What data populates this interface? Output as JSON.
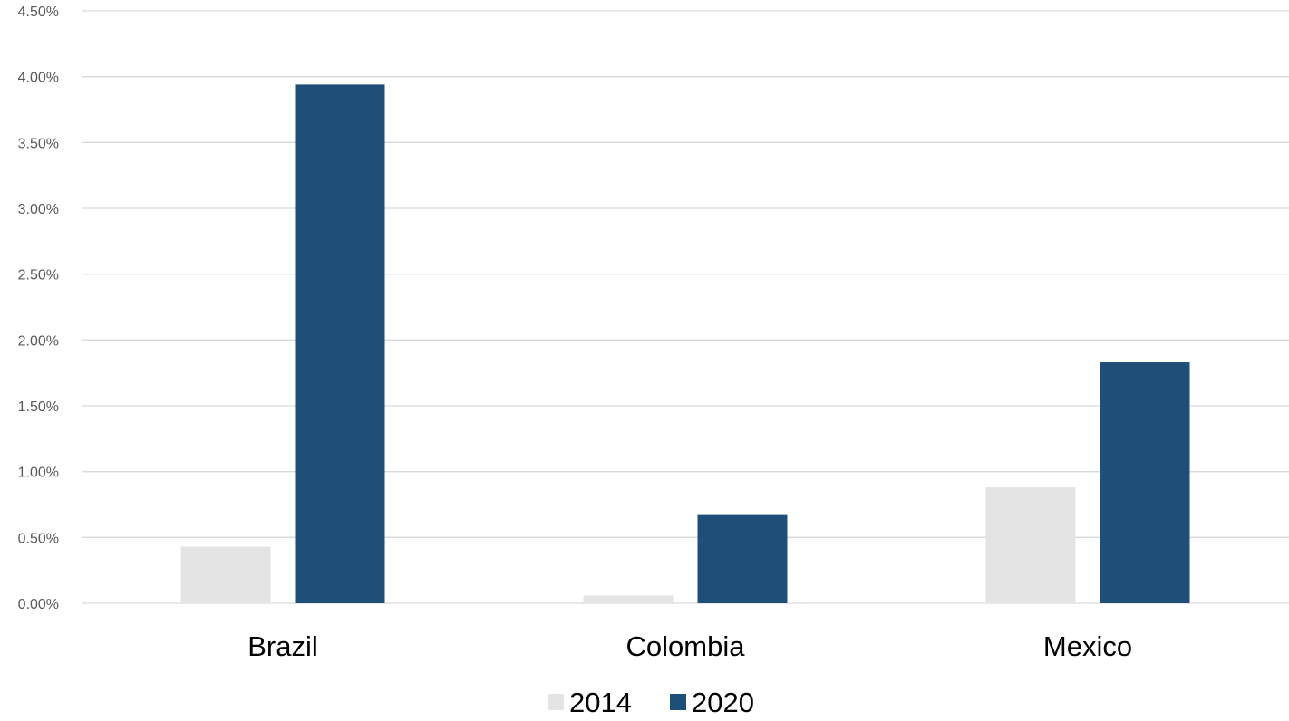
{
  "chart_data": {
    "type": "bar",
    "categories": [
      "Brazil",
      "Colombia",
      "Mexico"
    ],
    "series": [
      {
        "name": "2014",
        "values": [
          0.0043,
          0.0006,
          0.0088
        ],
        "color": "#e4e4e4"
      },
      {
        "name": "2020",
        "values": [
          0.0394,
          0.0067,
          0.0183
        ],
        "color": "#1f4e79"
      }
    ],
    "ylim": [
      0,
      0.045
    ],
    "yticks": [
      0,
      0.005,
      0.01,
      0.015,
      0.02,
      0.025,
      0.03,
      0.035,
      0.04,
      0.045
    ],
    "ytick_labels": [
      "0.00%",
      "0.50%",
      "1.00%",
      "1.50%",
      "2.00%",
      "2.50%",
      "3.00%",
      "3.50%",
      "4.00%",
      "4.50%"
    ],
    "grid": true,
    "legend_position": "bottom",
    "gridline_color": "#d9d9d9"
  }
}
